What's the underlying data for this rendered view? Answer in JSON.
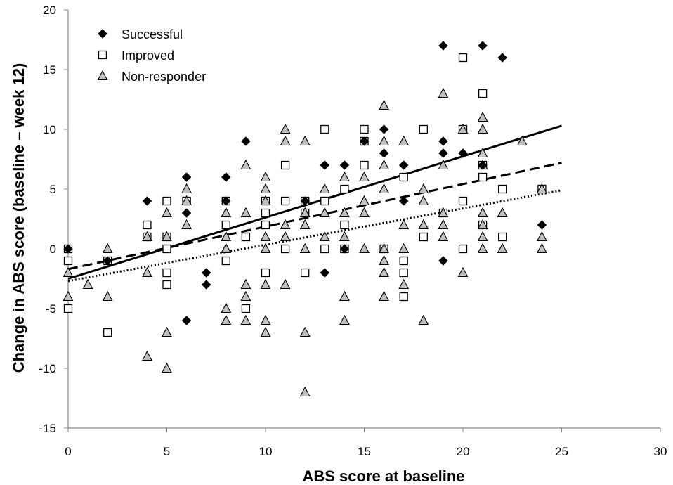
{
  "chart_data": {
    "type": "scatter",
    "xlabel": "ABS score at baseline",
    "ylabel": "Change in ABS score (baseline – week 12)",
    "xlim": [
      0,
      30
    ],
    "ylim": [
      -15,
      20
    ],
    "xticks": [
      0,
      5,
      10,
      15,
      20,
      25,
      30
    ],
    "yticks": [
      -15,
      -10,
      -5,
      0,
      5,
      10,
      15,
      20
    ],
    "grid": false,
    "legend_position": "top-left",
    "series": [
      {
        "name": "Successful",
        "marker": "diamond",
        "color": "#000000",
        "points": [
          [
            0,
            0
          ],
          [
            2,
            -1
          ],
          [
            4,
            4
          ],
          [
            6,
            6
          ],
          [
            6,
            3
          ],
          [
            6,
            -6
          ],
          [
            7,
            -2
          ],
          [
            7,
            -3
          ],
          [
            8,
            6
          ],
          [
            8,
            4
          ],
          [
            9,
            9
          ],
          [
            12,
            4
          ],
          [
            13,
            7
          ],
          [
            13,
            -2
          ],
          [
            14,
            7
          ],
          [
            14,
            0
          ],
          [
            15,
            9
          ],
          [
            16,
            10
          ],
          [
            16,
            8
          ],
          [
            17,
            7
          ],
          [
            17,
            4
          ],
          [
            19,
            17
          ],
          [
            19,
            9
          ],
          [
            19,
            8
          ],
          [
            19,
            -1
          ],
          [
            20,
            8
          ],
          [
            21,
            17
          ],
          [
            21,
            7
          ],
          [
            22,
            16
          ],
          [
            24,
            2
          ]
        ]
      },
      {
        "name": "Improved",
        "marker": "square",
        "color": "#000000",
        "points": [
          [
            0,
            0
          ],
          [
            0,
            -1
          ],
          [
            0,
            -5
          ],
          [
            2,
            -1
          ],
          [
            2,
            -7
          ],
          [
            4,
            2
          ],
          [
            4,
            1
          ],
          [
            5,
            4
          ],
          [
            5,
            1
          ],
          [
            5,
            0
          ],
          [
            5,
            -2
          ],
          [
            5,
            -3
          ],
          [
            6,
            4
          ],
          [
            8,
            4
          ],
          [
            8,
            2
          ],
          [
            8,
            -1
          ],
          [
            9,
            1
          ],
          [
            9,
            -5
          ],
          [
            10,
            4
          ],
          [
            10,
            3
          ],
          [
            10,
            2
          ],
          [
            10,
            -2
          ],
          [
            11,
            7
          ],
          [
            11,
            4
          ],
          [
            11,
            0
          ],
          [
            12,
            4
          ],
          [
            12,
            3
          ],
          [
            12,
            -2
          ],
          [
            13,
            10
          ],
          [
            13,
            4
          ],
          [
            13,
            0
          ],
          [
            14,
            5
          ],
          [
            14,
            2
          ],
          [
            14,
            0
          ],
          [
            15,
            10
          ],
          [
            15,
            9
          ],
          [
            15,
            7
          ],
          [
            16,
            0
          ],
          [
            17,
            6
          ],
          [
            17,
            -1
          ],
          [
            17,
            -2
          ],
          [
            17,
            -4
          ],
          [
            18,
            10
          ],
          [
            18,
            1
          ],
          [
            19,
            3
          ],
          [
            20,
            16
          ],
          [
            20,
            10
          ],
          [
            20,
            4
          ],
          [
            20,
            0
          ],
          [
            21,
            13
          ],
          [
            21,
            7
          ],
          [
            21,
            6
          ],
          [
            21,
            2
          ],
          [
            22,
            5
          ],
          [
            22,
            1
          ],
          [
            24,
            5
          ]
        ]
      },
      {
        "name": "Non-responder",
        "marker": "triangle",
        "color": "#c0c0c0",
        "points": [
          [
            0,
            -2
          ],
          [
            0,
            -4
          ],
          [
            1,
            -3
          ],
          [
            2,
            0
          ],
          [
            2,
            -4
          ],
          [
            4,
            1
          ],
          [
            4,
            -2
          ],
          [
            4,
            -9
          ],
          [
            5,
            3
          ],
          [
            5,
            1
          ],
          [
            5,
            -7
          ],
          [
            5,
            -10
          ],
          [
            6,
            5
          ],
          [
            6,
            4
          ],
          [
            6,
            2
          ],
          [
            8,
            3
          ],
          [
            8,
            1
          ],
          [
            8,
            0
          ],
          [
            8,
            -5
          ],
          [
            8,
            -6
          ],
          [
            9,
            7
          ],
          [
            9,
            3
          ],
          [
            9,
            -3
          ],
          [
            9,
            -4
          ],
          [
            9,
            -6
          ],
          [
            10,
            6
          ],
          [
            10,
            5
          ],
          [
            10,
            4
          ],
          [
            10,
            1
          ],
          [
            10,
            0
          ],
          [
            10,
            -3
          ],
          [
            10,
            -6
          ],
          [
            10,
            -7
          ],
          [
            11,
            10
          ],
          [
            11,
            9
          ],
          [
            11,
            2
          ],
          [
            11,
            1
          ],
          [
            11,
            -3
          ],
          [
            12,
            9
          ],
          [
            12,
            3
          ],
          [
            12,
            2
          ],
          [
            12,
            0
          ],
          [
            12,
            -7
          ],
          [
            12,
            -12
          ],
          [
            13,
            5
          ],
          [
            13,
            3
          ],
          [
            13,
            1
          ],
          [
            14,
            6
          ],
          [
            14,
            3
          ],
          [
            14,
            1
          ],
          [
            14,
            -4
          ],
          [
            14,
            -6
          ],
          [
            15,
            6
          ],
          [
            15,
            4
          ],
          [
            15,
            3
          ],
          [
            15,
            0
          ],
          [
            16,
            12
          ],
          [
            16,
            9
          ],
          [
            16,
            7
          ],
          [
            16,
            5
          ],
          [
            16,
            0
          ],
          [
            16,
            -1
          ],
          [
            16,
            -2
          ],
          [
            16,
            -4
          ],
          [
            17,
            9
          ],
          [
            17,
            2
          ],
          [
            17,
            0
          ],
          [
            17,
            -3
          ],
          [
            18,
            5
          ],
          [
            18,
            4
          ],
          [
            18,
            2
          ],
          [
            18,
            -6
          ],
          [
            19,
            13
          ],
          [
            19,
            7
          ],
          [
            19,
            3
          ],
          [
            19,
            2
          ],
          [
            19,
            1
          ],
          [
            20,
            10
          ],
          [
            20,
            -2
          ],
          [
            21,
            11
          ],
          [
            21,
            10
          ],
          [
            21,
            8
          ],
          [
            21,
            7
          ],
          [
            21,
            3
          ],
          [
            21,
            2
          ],
          [
            21,
            1
          ],
          [
            21,
            0
          ],
          [
            22,
            3
          ],
          [
            22,
            0
          ],
          [
            23,
            9
          ],
          [
            24,
            5
          ],
          [
            24,
            1
          ],
          [
            24,
            0
          ]
        ]
      }
    ],
    "trendlines": [
      {
        "series": "Successful",
        "style": "solid",
        "x": [
          0,
          25
        ],
        "y": [
          -2.5,
          10.3
        ]
      },
      {
        "series": "Improved",
        "style": "dashed",
        "x": [
          0,
          25
        ],
        "y": [
          -1.7,
          7.2
        ]
      },
      {
        "series": "Non-responder",
        "style": "dotted",
        "x": [
          0,
          25
        ],
        "y": [
          -2.7,
          4.9
        ]
      }
    ]
  }
}
